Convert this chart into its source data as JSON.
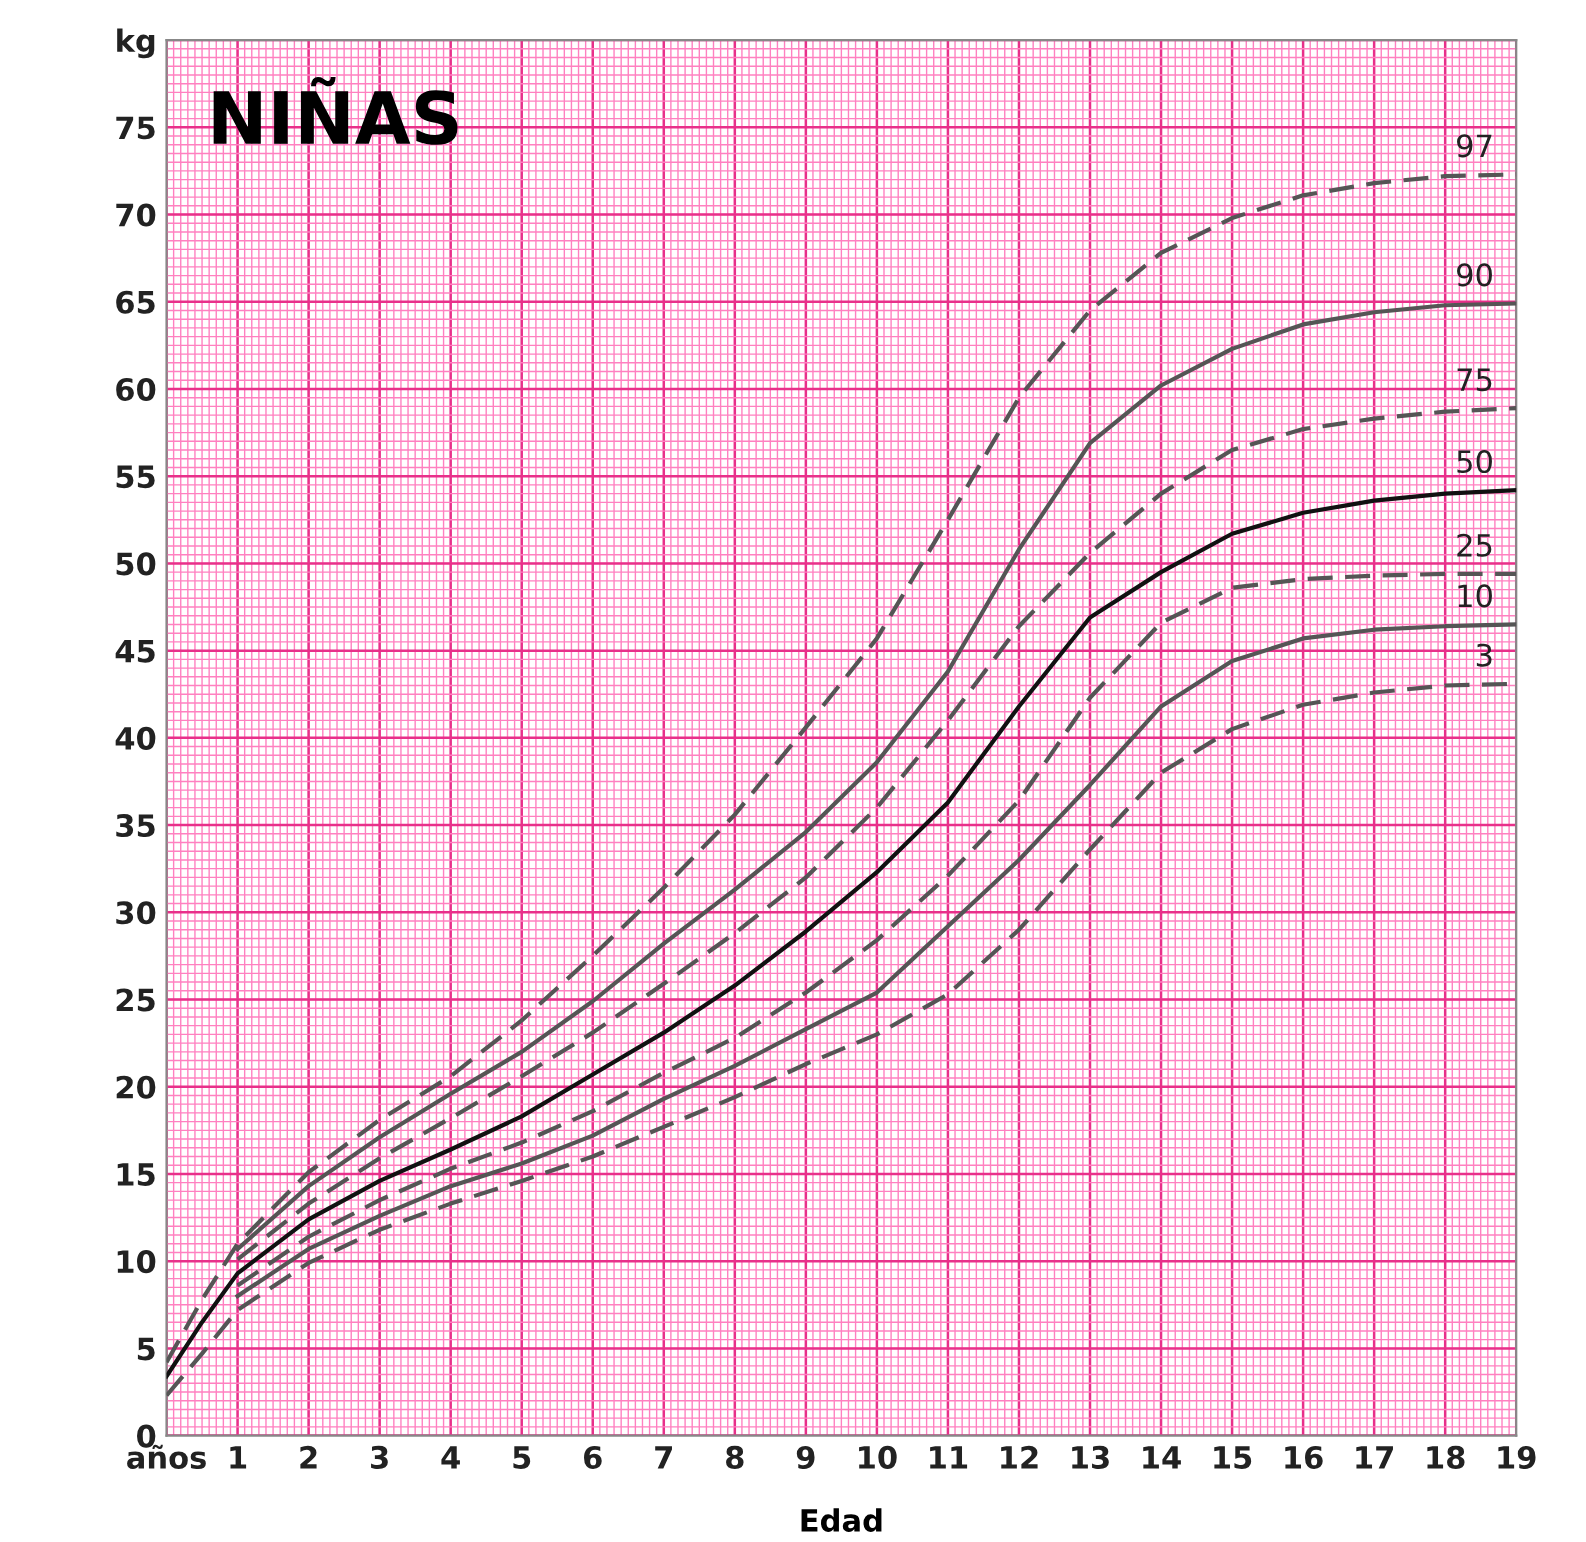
{
  "chart_data": {
    "type": "line",
    "title": "NIÑAS",
    "xlabel": "Edad",
    "x": [
      0,
      0.5,
      1,
      2,
      3,
      4,
      5,
      6,
      7,
      8,
      9,
      10,
      11,
      12,
      13,
      14,
      15,
      16,
      17,
      18,
      19
    ],
    "series": [
      {
        "name": "97",
        "color": "#555555",
        "line_style": "dashed",
        "values": [
          4.2,
          7.8,
          11.0,
          15.1,
          18.1,
          20.6,
          23.8,
          27.5,
          31.4,
          35.6,
          40.6,
          45.7,
          52.5,
          59.5,
          64.5,
          67.8,
          69.8,
          71.1,
          71.8,
          72.2,
          72.3
        ]
      },
      {
        "name": "90",
        "color": "#555555",
        "line_style": "solid",
        "values": [
          null,
          null,
          10.7,
          14.3,
          17.1,
          19.6,
          22.0,
          24.9,
          28.2,
          31.3,
          34.6,
          38.6,
          43.8,
          50.8,
          56.9,
          60.2,
          62.3,
          63.7,
          64.4,
          64.8,
          64.9
        ]
      },
      {
        "name": "75",
        "color": "#555555",
        "line_style": "dashed",
        "values": [
          null,
          null,
          10.1,
          13.3,
          15.9,
          18.2,
          20.6,
          23.1,
          25.9,
          28.8,
          32.0,
          36.0,
          41.0,
          46.4,
          50.6,
          54.0,
          56.5,
          57.7,
          58.3,
          58.7,
          58.9
        ]
      },
      {
        "name": "50",
        "color": "#111111",
        "line_style": "solid",
        "values": [
          3.4,
          6.5,
          9.3,
          12.4,
          14.6,
          16.4,
          18.3,
          20.7,
          23.1,
          25.8,
          28.9,
          32.3,
          36.3,
          41.8,
          46.9,
          49.5,
          51.7,
          52.9,
          53.6,
          54.0,
          54.2
        ]
      },
      {
        "name": "25",
        "color": "#555555",
        "line_style": "dashed",
        "values": [
          null,
          null,
          8.6,
          11.4,
          13.5,
          15.3,
          16.8,
          18.6,
          20.8,
          22.8,
          25.4,
          28.4,
          32.1,
          36.4,
          42.3,
          46.6,
          48.6,
          49.1,
          49.3,
          49.4,
          49.4
        ]
      },
      {
        "name": "10",
        "color": "#555555",
        "line_style": "solid",
        "values": [
          null,
          null,
          8.0,
          10.7,
          12.6,
          14.3,
          15.6,
          17.2,
          19.3,
          21.2,
          23.3,
          25.4,
          29.2,
          33.0,
          37.3,
          41.8,
          44.4,
          45.7,
          46.2,
          46.4,
          46.5
        ]
      },
      {
        "name": "3",
        "color": "#555555",
        "line_style": "dashed",
        "values": [
          2.3,
          4.7,
          7.2,
          9.9,
          11.8,
          13.3,
          14.6,
          16.0,
          17.7,
          19.4,
          21.3,
          23.0,
          25.3,
          29.0,
          33.6,
          38.0,
          40.5,
          41.9,
          42.6,
          43.0,
          43.1
        ]
      }
    ],
    "xlim": [
      0,
      19
    ],
    "ylim": [
      0,
      80
    ],
    "xticks": [
      {
        "value": 0,
        "label": "años"
      },
      1,
      2,
      3,
      4,
      5,
      6,
      7,
      8,
      9,
      10,
      11,
      12,
      13,
      14,
      15,
      16,
      17,
      18,
      19
    ],
    "yticks": [
      0,
      5,
      10,
      15,
      20,
      25,
      30,
      35,
      40,
      45,
      50,
      55,
      60,
      65,
      70,
      75,
      {
        "value": 80,
        "label": "kg"
      }
    ],
    "grid": true,
    "legend": false,
    "marker": "none"
  }
}
